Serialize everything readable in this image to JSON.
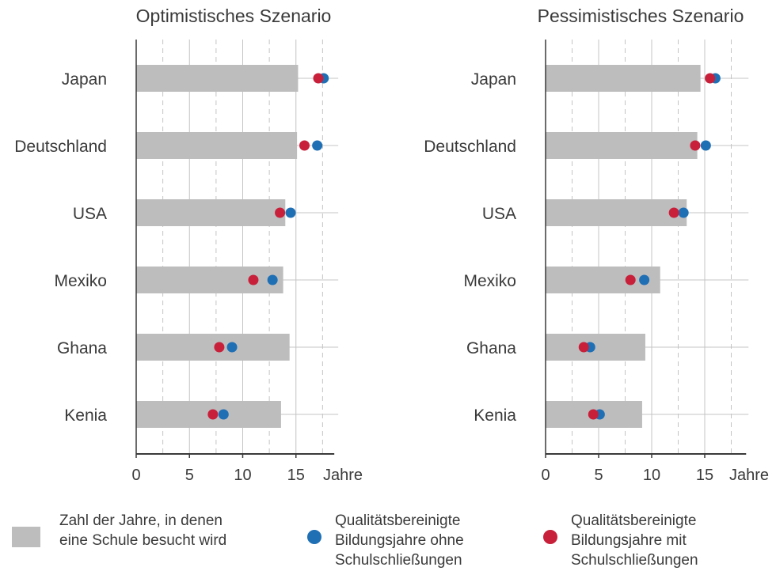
{
  "colors": {
    "bar": "#bdbdbe",
    "without_closures": "#1f6fb5",
    "with_closures": "#c8203a",
    "axis": "#3a3a3a",
    "grid": "#c4c4c4"
  },
  "chart_data": [
    {
      "type": "bar",
      "title": "Optimistisches Szenario",
      "categories": [
        "Japan",
        "Deutschland",
        "USA",
        "Mexiko",
        "Ghana",
        "Kenia"
      ],
      "x_ticks": [
        "0",
        "5",
        "10",
        "15"
      ],
      "xlabel": "Jahre",
      "xlim": [
        0,
        18.6
      ],
      "series": [
        {
          "name": "Zahl der Jahre, in denen eine Schule besucht wird",
          "kind": "bar",
          "values": [
            15.2,
            15.1,
            14.0,
            13.8,
            14.4,
            13.6
          ]
        },
        {
          "name": "Qualitätsbereinigte Bildungsjahre ohne Schulschließungen",
          "kind": "dot",
          "values": [
            17.6,
            17.0,
            14.5,
            12.8,
            9.0,
            8.2
          ]
        },
        {
          "name": "Qualitätsbereinigte Bildungsjahre mit Schulschließungen",
          "kind": "dot",
          "values": [
            17.1,
            15.8,
            13.5,
            11.0,
            7.8,
            7.2
          ]
        }
      ]
    },
    {
      "type": "bar",
      "title": "Pessimistisches Szenario",
      "categories": [
        "Japan",
        "Deutschland",
        "USA",
        "Mexiko",
        "Ghana",
        "Kenia"
      ],
      "x_ticks": [
        "0",
        "5",
        "10",
        "15"
      ],
      "xlabel": "Jahre",
      "xlim": [
        0,
        18.9
      ],
      "series": [
        {
          "name": "Zahl der Jahre, in denen eine Schule besucht wird",
          "kind": "bar",
          "values": [
            14.6,
            14.3,
            13.3,
            10.8,
            9.4,
            9.1
          ]
        },
        {
          "name": "Qualitätsbereinigte Bildungsjahre ohne Schulschließungen",
          "kind": "dot",
          "values": [
            16.0,
            15.1,
            13.0,
            9.3,
            4.2,
            5.1
          ]
        },
        {
          "name": "Qualitätsbereinigte Bildungsjahre mit Schulschließungen",
          "kind": "dot",
          "values": [
            15.5,
            14.1,
            12.1,
            8.0,
            3.6,
            4.5
          ]
        }
      ]
    }
  ],
  "legend": [
    {
      "label": "Zahl der Jahre, in denen\neine Schule besucht wird",
      "shape": "rect",
      "color_key": "bar"
    },
    {
      "label": "Qualitätsbereinigte\nBildungsjahre ohne\nSchulschließungen",
      "shape": "dot",
      "color_key": "without_closures"
    },
    {
      "label": "Qualitätsbereinigte\nBildungsjahre mit\nSchulschließungen",
      "shape": "dot",
      "color_key": "with_closures"
    }
  ]
}
